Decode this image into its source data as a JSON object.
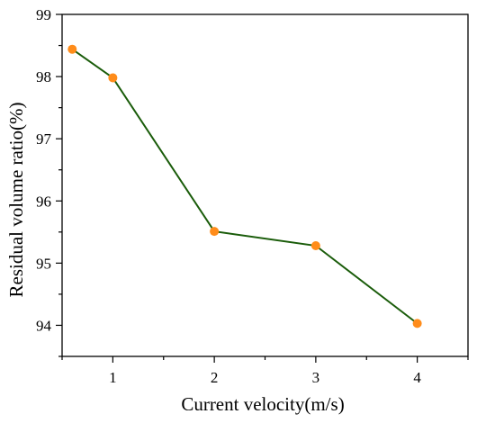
{
  "chart_data": {
    "type": "line",
    "xlabel": "Current velocity(m/s)",
    "ylabel": "Residual volume ratio(%)",
    "xlim": [
      0.5,
      4.5
    ],
    "ylim": [
      93.5,
      99
    ],
    "x_ticks": [
      1,
      2,
      3,
      4
    ],
    "x_ticks_labels": [
      "1",
      "2",
      "3",
      "4"
    ],
    "x_minor_ticks": [
      0.5,
      1.5,
      2.5,
      3.5,
      4.5
    ],
    "y_ticks": [
      94,
      95,
      96,
      97,
      98,
      99
    ],
    "y_ticks_labels": [
      "94",
      "95",
      "96",
      "97",
      "98",
      "99"
    ],
    "y_minor_ticks": [
      93.5,
      94.5,
      95.5,
      96.5,
      97.5,
      98.5
    ],
    "grid": false,
    "series": [
      {
        "x": [
          0.6,
          1,
          2,
          3,
          4
        ],
        "values": [
          98.44,
          97.98,
          95.51,
          95.28,
          94.03
        ],
        "line_color": "#1a5c0a",
        "marker_color": "#ff8c1a"
      }
    ]
  }
}
